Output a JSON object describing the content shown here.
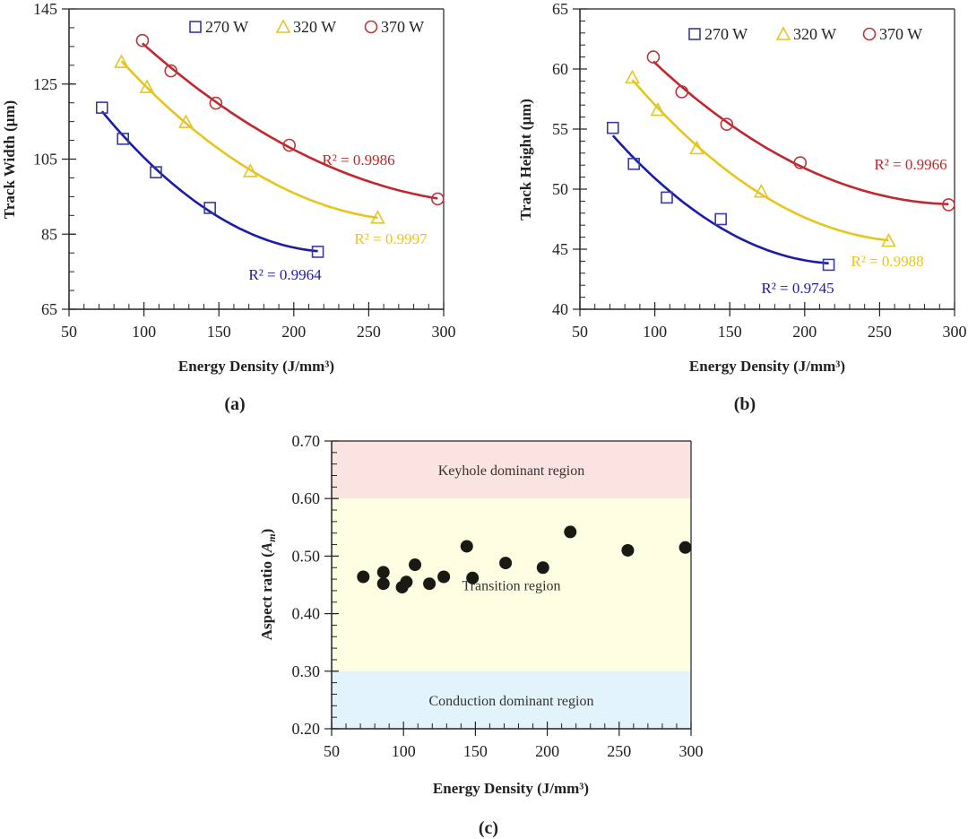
{
  "chart_data": [
    {
      "id": "a",
      "type": "scatter",
      "panel_label": "(a)",
      "title": "",
      "xlabel": "Energy Density (J/mm³)",
      "ylabel": "Track Width (μm)",
      "xlim": [
        50,
        300
      ],
      "ylim": [
        65,
        145
      ],
      "xticks": [
        50,
        100,
        150,
        200,
        250,
        300
      ],
      "yticks": [
        65,
        85,
        105,
        125,
        145
      ],
      "x_minor_step": 10,
      "y_minor_step": 5,
      "grid": false,
      "legend_position": "top-right",
      "series": [
        {
          "name": "270 W",
          "marker": "square",
          "color": "#1c1ca8",
          "marker_color": "#3a3aa0",
          "x": [
            72,
            86,
            108,
            144,
            216
          ],
          "y": [
            118.7,
            110.4,
            101.5,
            92.0,
            80.3
          ],
          "fit": "polynomial-2",
          "r2_label": "R² = 0.9964"
        },
        {
          "name": "320 W",
          "marker": "triangle",
          "color": "#e8c51c",
          "marker_color": "#e3c52a",
          "x": [
            85,
            102,
            128,
            171,
            256
          ],
          "y": [
            130.9,
            124.2,
            114.9,
            101.8,
            89.4
          ],
          "fit": "polynomial-2",
          "r2_label": "R² = 0.9997"
        },
        {
          "name": "370 W",
          "marker": "circle",
          "color": "#c1272d",
          "marker_color": "#b8363c",
          "x": [
            99,
            118,
            148,
            197,
            296
          ],
          "y": [
            136.6,
            128.5,
            119.9,
            108.7,
            94.4
          ],
          "fit": "polynomial-2",
          "r2_label": "R² = 0.9986"
        }
      ]
    },
    {
      "id": "b",
      "type": "scatter",
      "panel_label": "(b)",
      "title": "",
      "xlabel": "Energy Density (J/mm³)",
      "ylabel": "Track Height (μm)",
      "xlim": [
        50,
        300
      ],
      "ylim": [
        40,
        65
      ],
      "xticks": [
        50,
        100,
        150,
        200,
        250,
        300
      ],
      "yticks": [
        40,
        45,
        50,
        55,
        60,
        65
      ],
      "x_minor_step": 10,
      "y_minor_step": 1,
      "grid": false,
      "legend_position": "top-right",
      "series": [
        {
          "name": "270 W",
          "marker": "square",
          "color": "#1c1ca8",
          "marker_color": "#3a3aa0",
          "x": [
            72,
            86,
            108,
            144,
            216
          ],
          "y": [
            55.1,
            52.1,
            49.3,
            47.5,
            43.7
          ],
          "fit": "polynomial-2",
          "r2_label": "R² = 0.9745"
        },
        {
          "name": "320 W",
          "marker": "triangle",
          "color": "#e8c51c",
          "marker_color": "#e3c52a",
          "x": [
            85,
            102,
            128,
            171,
            256
          ],
          "y": [
            59.3,
            56.6,
            53.4,
            49.8,
            45.7
          ],
          "fit": "polynomial-2",
          "r2_label": "R² = 0.9988"
        },
        {
          "name": "370 W",
          "marker": "circle",
          "color": "#c1272d",
          "marker_color": "#b8363c",
          "x": [
            99,
            118,
            148,
            197,
            296
          ],
          "y": [
            61.0,
            58.1,
            55.4,
            52.2,
            48.7
          ],
          "fit": "polynomial-2",
          "r2_label": "R² = 0.9966"
        }
      ]
    },
    {
      "id": "c",
      "type": "scatter",
      "panel_label": "(c)",
      "title": "",
      "xlabel": "Energy Density (J/mm³)",
      "ylabel": "Aspect ratio (Am)",
      "ylabel_main": "Aspect ratio (",
      "ylabel_italic": "A",
      "ylabel_sub": "m",
      "ylabel_end": ")",
      "xlim": [
        50,
        300
      ],
      "ylim": [
        0.2,
        0.7
      ],
      "xticks": [
        50,
        100,
        150,
        200,
        250,
        300
      ],
      "yticks": [
        0.2,
        0.3,
        0.4,
        0.5,
        0.6,
        0.7
      ],
      "ytick_labels": [
        "0.20",
        "0.30",
        "0.40",
        "0.50",
        "0.60",
        "0.70"
      ],
      "x_minor_step": 10,
      "y_minor_step": 0.02,
      "grid": false,
      "regions": [
        {
          "name": "Keyhole dominant region",
          "from": 0.6,
          "to": 0.7,
          "color": "#fbe3e2"
        },
        {
          "name": "Transition region",
          "from": 0.3,
          "to": 0.6,
          "color": "#fefee2"
        },
        {
          "name": "Conduction dominant region",
          "from": 0.2,
          "to": 0.3,
          "color": "#e2f3fb"
        }
      ],
      "series": [
        {
          "name": "Aspect ratio",
          "marker": "filled-circle",
          "color": "#1a1a14",
          "x": [
            72,
            86,
            86,
            99,
            102,
            108,
            118,
            128,
            144,
            148,
            171,
            197,
            216,
            256,
            296
          ],
          "y": [
            0.464,
            0.452,
            0.472,
            0.446,
            0.455,
            0.485,
            0.452,
            0.464,
            0.517,
            0.462,
            0.488,
            0.48,
            0.542,
            0.51,
            0.515
          ]
        }
      ]
    }
  ]
}
